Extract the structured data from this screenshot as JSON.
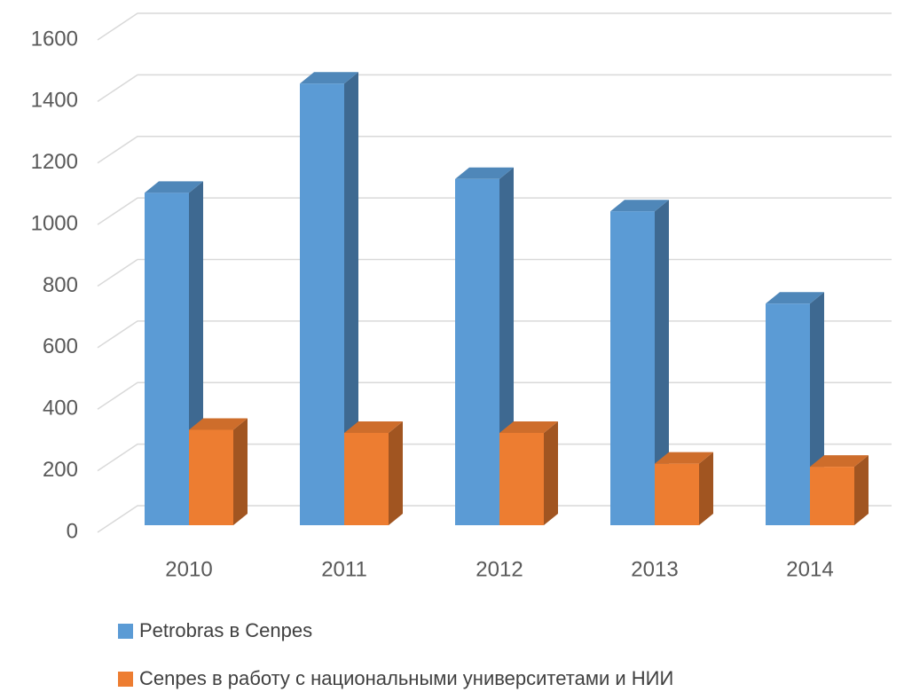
{
  "chart_data": {
    "type": "bar3d",
    "categories": [
      "2010",
      "2011",
      "2012",
      "2013",
      "2014"
    ],
    "series": [
      {
        "name": "Petrobras в Cenpes",
        "color": "#5b9bd5",
        "values": [
          1080,
          1435,
          1125,
          1020,
          720
        ]
      },
      {
        "name": "Cenpes в работу с национальными университетами и НИИ",
        "color": "#ed7d31",
        "values": [
          310,
          300,
          300,
          200,
          190
        ]
      }
    ],
    "ylim": [
      0,
      1600
    ],
    "yticks": [
      0,
      200,
      400,
      600,
      800,
      1000,
      1200,
      1400,
      1600
    ],
    "grid": true,
    "legend": "bottom"
  }
}
